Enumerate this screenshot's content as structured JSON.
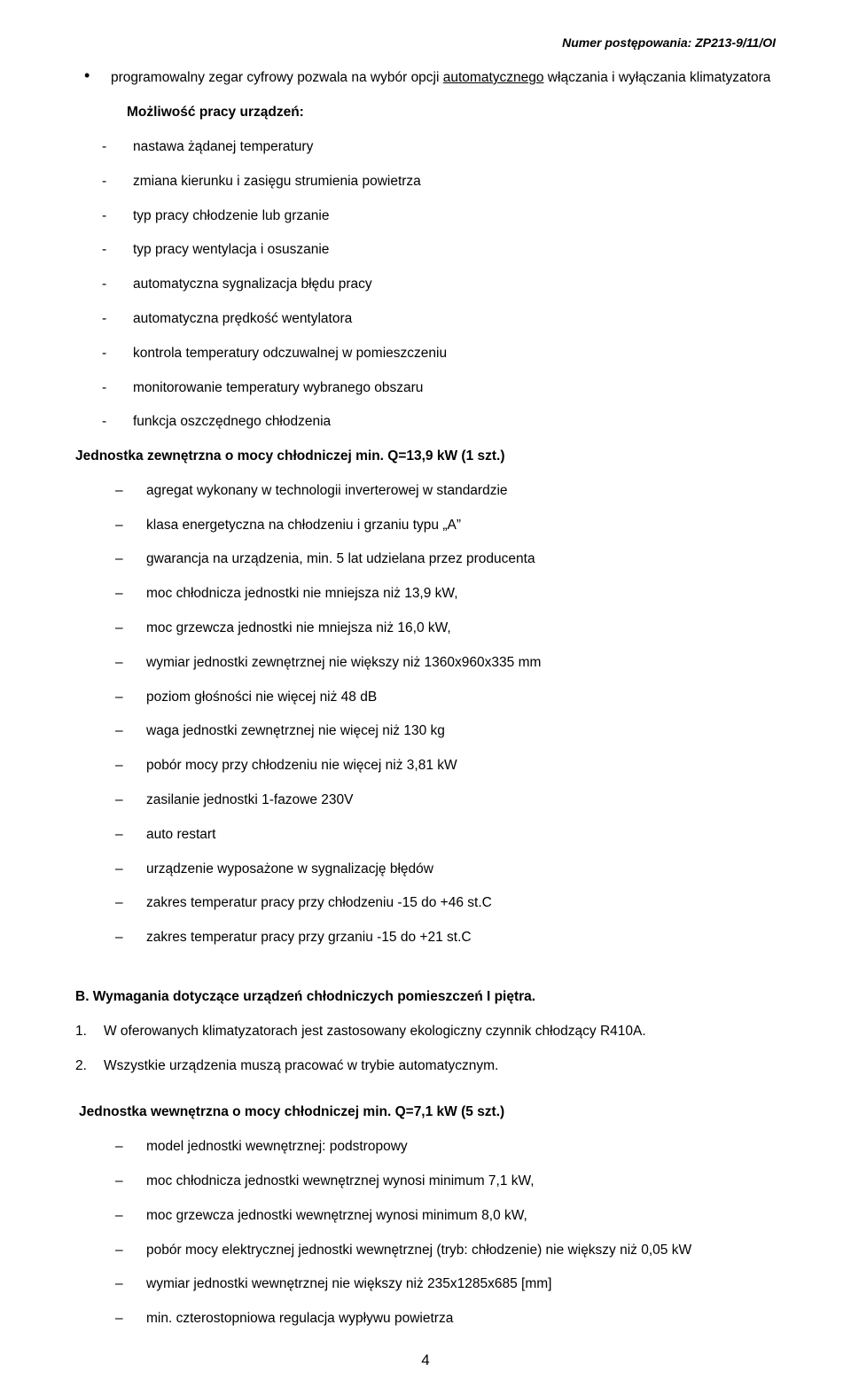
{
  "header": {
    "right": "Numer postępowania: ZP213-9/11/OI"
  },
  "intro": {
    "lead_pre": "programowalny zegar cyfrowy pozwala na wybór opcji ",
    "lead_under": "automatycznego",
    "lead_post": " włączania i wyłączania klimatyzatora"
  },
  "subhead1": "Możliwość pracy urządzeń:",
  "dash1": [
    "nastawa żądanej temperatury",
    "zmiana kierunku i zasięgu strumienia powietrza",
    "typ pracy chłodzenie lub grzanie",
    "typ pracy wentylacja i osuszanie",
    "automatyczna sygnalizacja błędu pracy",
    "automatyczna prędkość wentylatora",
    "kontrola temperatury odczuwalnej w pomieszczeniu",
    "monitorowanie temperatury wybranego obszaru",
    "funkcja oszczędnego chłodzenia"
  ],
  "unit_ext_head": "Jednostka zewnętrzna o mocy chłodniczej min. Q=13,9 kW  (1 szt.)",
  "ndash1": [
    "agregat wykonany w technologii inverterowej w standardzie",
    "klasa energetyczna na chłodzeniu i grzaniu typu „A”",
    "gwarancja na urządzenia, min. 5 lat udzielana przez producenta",
    "moc chłodnicza jednostki  nie mniejsza niż  13,9 kW,",
    "moc grzewcza jednostki nie mniejsza niż 16,0 kW,",
    "wymiar jednostki zewnętrznej nie większy  niż 1360x960x335 mm",
    "poziom głośności  nie więcej niż 48 dB",
    "waga jednostki zewnętrznej nie więcej  niż  130 kg",
    "pobór mocy przy chłodzeniu nie więcej niż  3,81 kW",
    "zasilanie jednostki 1-fazowe 230V",
    "auto restart",
    "urządzenie wyposażone w sygnalizację błędów",
    "zakres temperatur pracy przy chłodzeniu -15 do +46  st.C",
    "zakres temperatur pracy przy grzaniu -15 do +21 st.C"
  ],
  "sectionB": "B. Wymagania dotyczące urządzeń chłodniczych pomieszczeń I piętra.",
  "numlist": [
    "W oferowanych klimatyzatorach jest zastosowany ekologiczny czynnik chłodzący R410A.",
    "Wszystkie urządzenia muszą pracować w trybie automatycznym."
  ],
  "unit_int_head": "Jednostka wewnętrzna o mocy chłodniczej min. Q=7,1 kW   (5 szt.)",
  "ndash2": [
    "model jednostki wewnętrznej: podstropowy",
    "moc chłodnicza jednostki wewnętrznej wynosi minimum 7,1 kW,",
    "moc grzewcza jednostki wewnętrznej wynosi minimum 8,0 kW,",
    "pobór mocy elektrycznej jednostki wewnętrznej (tryb: chłodzenie) nie większy niż 0,05 kW",
    "wymiar jednostki wewnętrznej nie większy  niż 235x1285x685 [mm]",
    "min. czterostopniowa regulacja wypływu powietrza"
  ],
  "pageNum": "4"
}
